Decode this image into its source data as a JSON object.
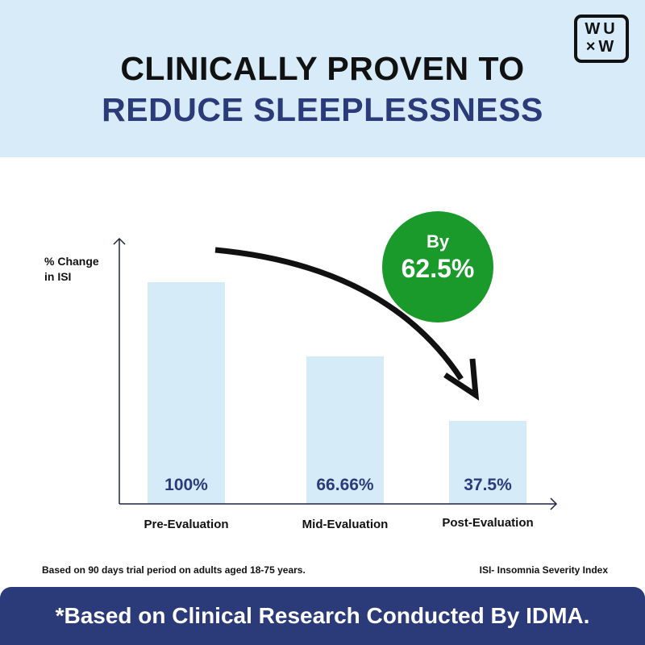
{
  "header": {
    "line1": "CLINICALLY PROVEN TO",
    "line2": "REDUCE SLEEPLESSNESS",
    "logo_text": "WU ×W",
    "logo_line1": "WU",
    "logo_line2": "×W"
  },
  "badge": {
    "prefix": "By",
    "value": "62.5%",
    "color": "#1a9a2a"
  },
  "chart_data": {
    "type": "bar",
    "title": "",
    "ylabel": "% Change in ISI",
    "ylabel_line1": "% Change",
    "ylabel_line2": "in ISI",
    "categories": [
      "Pre-Evaluation",
      "Mid-Evaluation",
      "Post-Evaluation"
    ],
    "values": [
      100,
      66.66,
      37.5
    ],
    "value_labels": [
      "100%",
      "66.66%",
      "37.5%"
    ],
    "ylim": [
      0,
      110
    ],
    "grid": false,
    "annotation": "By 62.5%"
  },
  "notes": {
    "left": "Based on 90 days trial period on adults aged 18-75 years.",
    "right": "ISI- Insomnia Severity Index"
  },
  "footer": {
    "text": "*Based on Clinical Research Conducted By IDMA."
  },
  "colors": {
    "navy": "#2b3a78",
    "bar": "#d5ebf8",
    "header_bg": "#d7ecf8"
  }
}
